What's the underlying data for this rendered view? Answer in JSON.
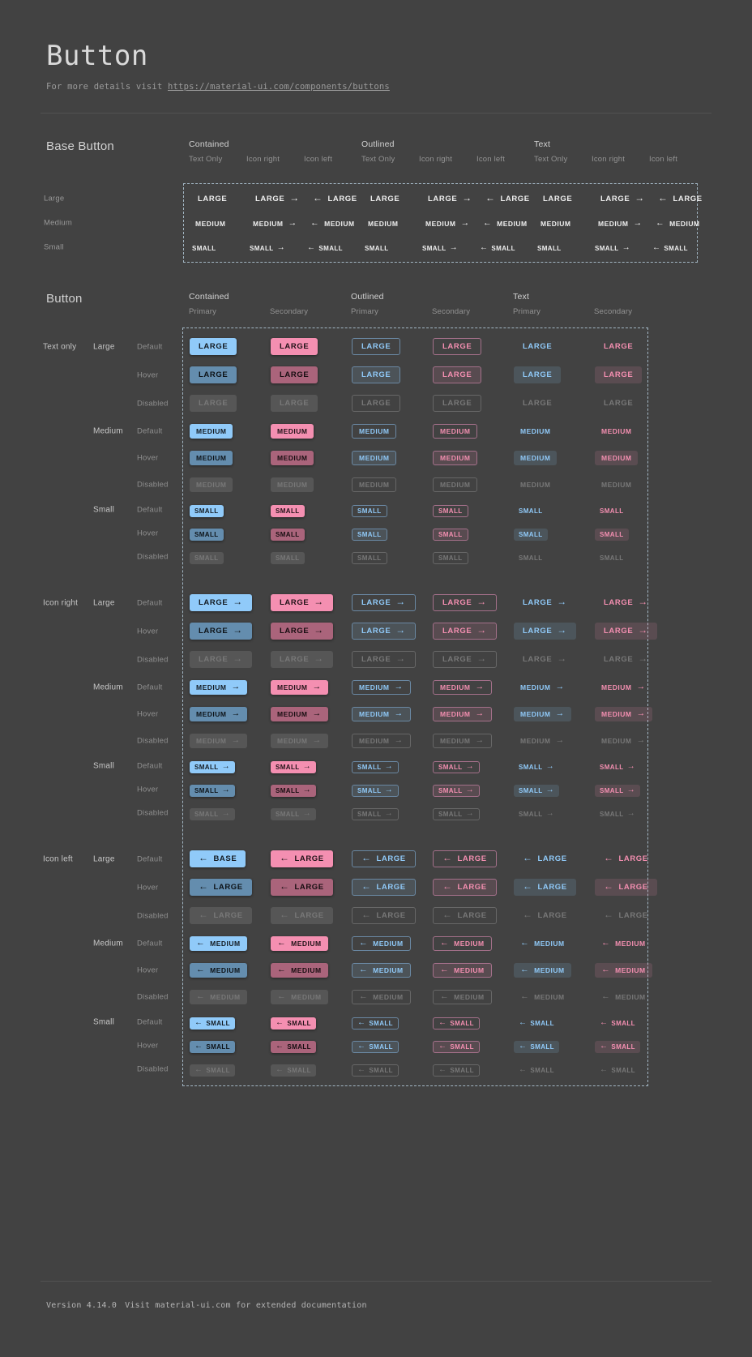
{
  "page": {
    "title": "Button",
    "subtitle_prefix": "For more details visit ",
    "subtitle_link": "https://material-ui.com/components/buttons",
    "footer_version": "Version 4.14.0",
    "footer_note": "Visit material-ui.com for extended documentation"
  },
  "colors": {
    "background": "#424242",
    "divider": "#525252",
    "dashed_border": "#A3B7C4",
    "primary": "#90CAF9",
    "primary_hover": "#648DAE",
    "secondary": "#F48FB1",
    "secondary_hover": "#AA647B",
    "disabled_bg": "#565656",
    "disabled_text": "#787878",
    "outline_primary_border": "#6A88A3",
    "outline_secondary_border": "#A4708A"
  },
  "icons": {
    "arrow-right": "→",
    "arrow-left": "←"
  },
  "base_section": {
    "heading": "Base Button",
    "groups": [
      "Contained",
      "Outlined",
      "Text"
    ],
    "subcolumns": [
      "Text Only",
      "Icon right",
      "Icon left"
    ],
    "icon_variants": [
      "none",
      "arrow-right",
      "arrow-left"
    ],
    "rows": [
      {
        "size": "large",
        "size_label": "Large",
        "button_label": "LARGE"
      },
      {
        "size": "medium",
        "size_label": "Medium",
        "button_label": "MEDIUM"
      },
      {
        "size": "small",
        "size_label": "Small",
        "button_label": "SMALL"
      }
    ]
  },
  "button_section": {
    "heading": "Button",
    "groups": [
      "Contained",
      "Outlined",
      "Text"
    ],
    "subcolumns": [
      "Primary",
      "Secondary"
    ],
    "variants": [
      {
        "key": "contained-primary",
        "group": "Contained",
        "sub": "Primary"
      },
      {
        "key": "contained-secondary",
        "group": "Contained",
        "sub": "Secondary"
      },
      {
        "key": "outlined-primary",
        "group": "Outlined",
        "sub": "Primary"
      },
      {
        "key": "outlined-secondary",
        "group": "Outlined",
        "sub": "Secondary"
      },
      {
        "key": "text-primary",
        "group": "Text",
        "sub": "Primary"
      },
      {
        "key": "text-secondary",
        "group": "Text",
        "sub": "Secondary"
      }
    ],
    "row_groups": [
      {
        "label": "Text only",
        "icon": "none"
      },
      {
        "label": "Icon right",
        "icon": "arrow-right"
      },
      {
        "label": "Icon left",
        "icon": "arrow-left"
      }
    ],
    "sizes": [
      {
        "key": "large",
        "label": "Large",
        "button_label": "LARGE"
      },
      {
        "key": "medium",
        "label": "Medium",
        "button_label": "MEDIUM"
      },
      {
        "key": "small",
        "label": "Small",
        "button_label": "SMALL"
      }
    ],
    "states": [
      {
        "key": "default",
        "label": "Default"
      },
      {
        "key": "hover",
        "label": "Hover"
      },
      {
        "key": "disabled",
        "label": "Disabled"
      }
    ],
    "special_case": {
      "row_group": "Icon left",
      "size": "large",
      "state": "default",
      "variant": "contained-primary",
      "button_label": "BASE"
    }
  }
}
